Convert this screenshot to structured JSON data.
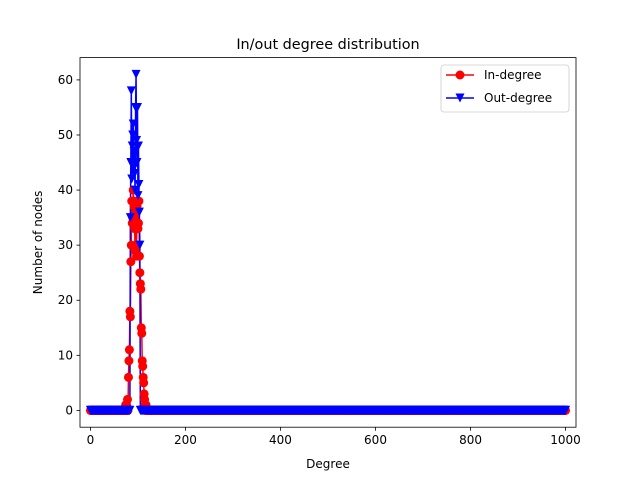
{
  "chart_data": {
    "type": "line",
    "title": "In/out degree distribution",
    "xlabel": "Degree",
    "ylabel": "Number of nodes",
    "xlim": [
      -22,
      1022
    ],
    "ylim": [
      -3.05,
      64.05
    ],
    "xticks": [
      0,
      200,
      400,
      600,
      800,
      1000
    ],
    "yticks": [
      0,
      10,
      20,
      30,
      40,
      50,
      60
    ],
    "grid": false,
    "legend_position": "upper right",
    "x_range": [
      0,
      1000
    ],
    "series": [
      {
        "name": "In-degree",
        "color": "#ff0000",
        "marker": "circle",
        "nonzero_points": [
          [
            74,
            1
          ],
          [
            76,
            1
          ],
          [
            78,
            2
          ],
          [
            80,
            6
          ],
          [
            81,
            9
          ],
          [
            82,
            11
          ],
          [
            83,
            18
          ],
          [
            84,
            17
          ],
          [
            85,
            27
          ],
          [
            86,
            30
          ],
          [
            87,
            38
          ],
          [
            88,
            34
          ],
          [
            89,
            35
          ],
          [
            90,
            40
          ],
          [
            91,
            38
          ],
          [
            92,
            37
          ],
          [
            93,
            33
          ],
          [
            94,
            29
          ],
          [
            95,
            30
          ],
          [
            96,
            36
          ],
          [
            97,
            28
          ],
          [
            98,
            37
          ],
          [
            99,
            38
          ],
          [
            100,
            33
          ],
          [
            101,
            34
          ],
          [
            102,
            38
          ],
          [
            103,
            28
          ],
          [
            104,
            25
          ],
          [
            105,
            23
          ],
          [
            106,
            22
          ],
          [
            107,
            15
          ],
          [
            108,
            14
          ],
          [
            109,
            9
          ],
          [
            110,
            8
          ],
          [
            111,
            6
          ],
          [
            112,
            5
          ],
          [
            113,
            3
          ],
          [
            114,
            2
          ],
          [
            115,
            1
          ],
          [
            117,
            1
          ]
        ]
      },
      {
        "name": "Out-degree",
        "color": "#0000ff",
        "marker": "triangle-down",
        "nonzero_points": [
          [
            84,
            35
          ],
          [
            85,
            45
          ],
          [
            86,
            58
          ],
          [
            87,
            42
          ],
          [
            88,
            48
          ],
          [
            89,
            50
          ],
          [
            90,
            52
          ],
          [
            91,
            44
          ],
          [
            92,
            47
          ],
          [
            93,
            43
          ],
          [
            94,
            40
          ],
          [
            95,
            55
          ],
          [
            96,
            61
          ],
          [
            97,
            49
          ],
          [
            98,
            45
          ],
          [
            99,
            55
          ],
          [
            100,
            39
          ],
          [
            101,
            48
          ],
          [
            102,
            41
          ],
          [
            103,
            36
          ],
          [
            104,
            30
          ]
        ]
      }
    ]
  }
}
